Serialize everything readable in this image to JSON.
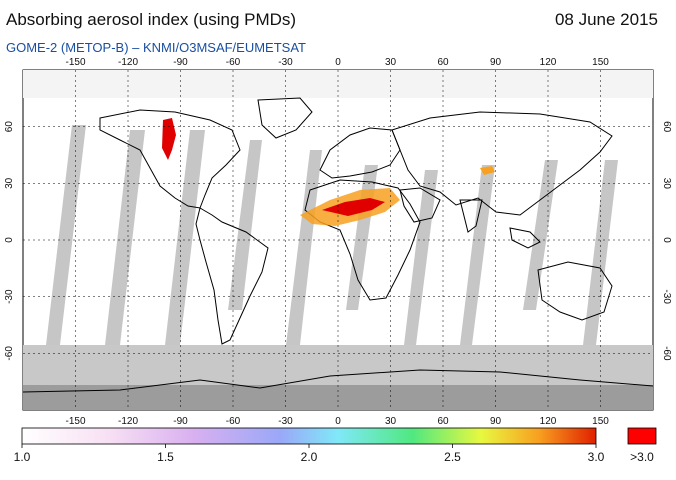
{
  "header": {
    "title": "Absorbing aerosol index (using PMDs)",
    "date": "08 June 2015",
    "subtitle": "GOME-2 (METOP-B)  –  KNMI/O3MSAF/EUMETSAT"
  },
  "map": {
    "lon_ticks": [
      -150,
      -120,
      -90,
      -60,
      -30,
      0,
      30,
      60,
      90,
      120,
      150
    ],
    "lat_ticks": [
      60,
      30,
      0,
      -30,
      -60
    ],
    "lon_range": [
      -180,
      180
    ],
    "lat_range": [
      -90,
      90
    ],
    "grid": true,
    "colors": {
      "land_mask": "#a8a8a8",
      "swath_gap": "#c0c0c0",
      "coast": "#000000",
      "high_value": "#ff0000"
    }
  },
  "colorbar": {
    "min_label": "1.0",
    "labels": [
      "1.0",
      "1.5",
      "2.0",
      "2.5",
      "3.0"
    ],
    "over_label": ">3.0",
    "colors": [
      "#ffffff",
      "#f3c8f0",
      "#b0a8f0",
      "#80e8f8",
      "#50e880",
      "#f8f840",
      "#f88020",
      "#e00000"
    ],
    "over_color": "#ff0000"
  }
}
